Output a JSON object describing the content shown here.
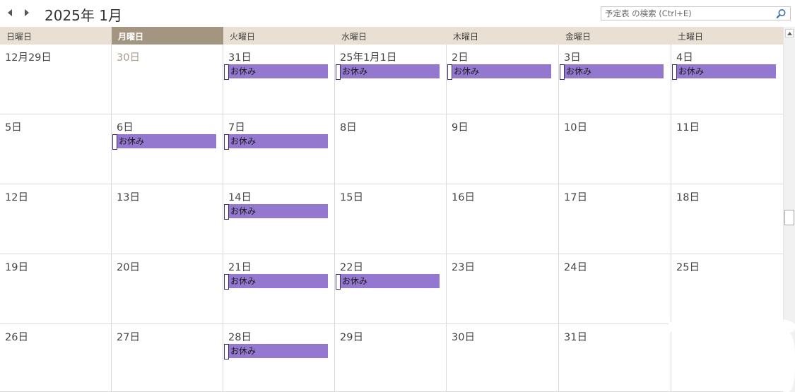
{
  "header": {
    "title": "2025年 1月",
    "search_placeholder": "予定表 の検索 (Ctrl+E)"
  },
  "weekdays": [
    "日曜日",
    "月曜日",
    "火曜日",
    "水曜日",
    "木曜日",
    "金曜日",
    "土曜日"
  ],
  "today_column": 1,
  "event_label": "お休み",
  "colors": {
    "event": "#9478d0",
    "today_header": "#a49580",
    "header_bg": "#e9e0d3"
  },
  "weeks": [
    [
      {
        "label": "12月29日",
        "event": false
      },
      {
        "label": "30日",
        "event": false,
        "muted": true
      },
      {
        "label": "31日",
        "event": true
      },
      {
        "label": "25年1月1日",
        "event": true
      },
      {
        "label": "2日",
        "event": true
      },
      {
        "label": "3日",
        "event": true
      },
      {
        "label": "4日",
        "event": true
      }
    ],
    [
      {
        "label": "5日",
        "event": false
      },
      {
        "label": "6日",
        "event": true
      },
      {
        "label": "7日",
        "event": true
      },
      {
        "label": "8日",
        "event": false
      },
      {
        "label": "9日",
        "event": false
      },
      {
        "label": "10日",
        "event": false
      },
      {
        "label": "11日",
        "event": false
      }
    ],
    [
      {
        "label": "12日",
        "event": false
      },
      {
        "label": "13日",
        "event": false
      },
      {
        "label": "14日",
        "event": true
      },
      {
        "label": "15日",
        "event": false
      },
      {
        "label": "16日",
        "event": false
      },
      {
        "label": "17日",
        "event": false
      },
      {
        "label": "18日",
        "event": false
      }
    ],
    [
      {
        "label": "19日",
        "event": false
      },
      {
        "label": "20日",
        "event": false
      },
      {
        "label": "21日",
        "event": true
      },
      {
        "label": "22日",
        "event": true
      },
      {
        "label": "23日",
        "event": false
      },
      {
        "label": "24日",
        "event": false
      },
      {
        "label": "25日",
        "event": false
      }
    ],
    [
      {
        "label": "26日",
        "event": false
      },
      {
        "label": "27日",
        "event": false
      },
      {
        "label": "28日",
        "event": true
      },
      {
        "label": "29日",
        "event": false
      },
      {
        "label": "30日",
        "event": false
      },
      {
        "label": "31日",
        "event": false
      },
      {
        "label": "",
        "event": false
      }
    ]
  ],
  "icons": {
    "prev": "triangle-left-icon",
    "next": "triangle-right-icon",
    "search": "magnifier-icon",
    "scroll_up": "triangle-up-icon"
  }
}
